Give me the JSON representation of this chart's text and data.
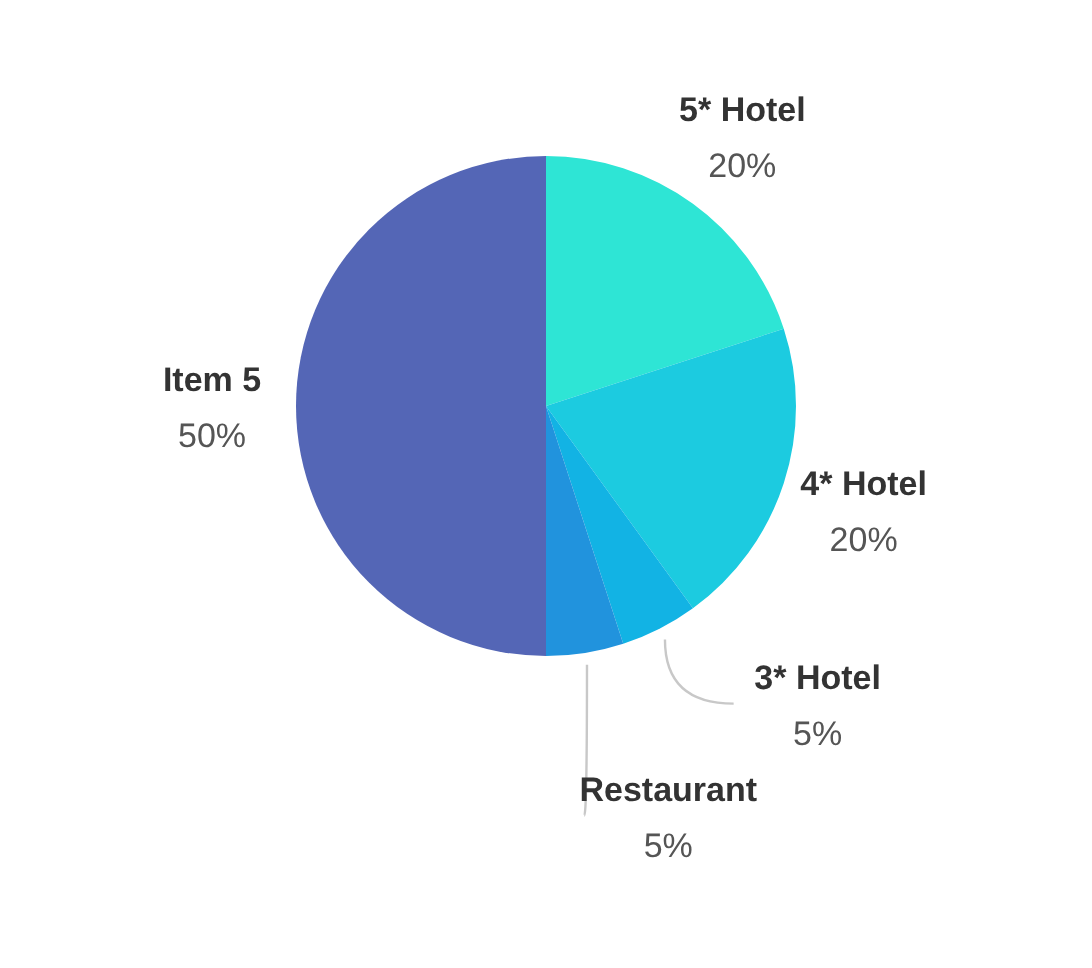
{
  "chart_data": {
    "type": "pie",
    "categories": [
      "5* Hotel",
      "4* Hotel",
      "3* Hotel",
      "Restaurant",
      "Item 5"
    ],
    "values": [
      20,
      20,
      5,
      5,
      50
    ],
    "colors": [
      "#2ee5d5",
      "#1ccbe0",
      "#12b3e4",
      "#2193dd",
      "#5466b6"
    ],
    "value_labels": [
      "20%",
      "20%",
      "5%",
      "5%",
      "50%"
    ]
  }
}
